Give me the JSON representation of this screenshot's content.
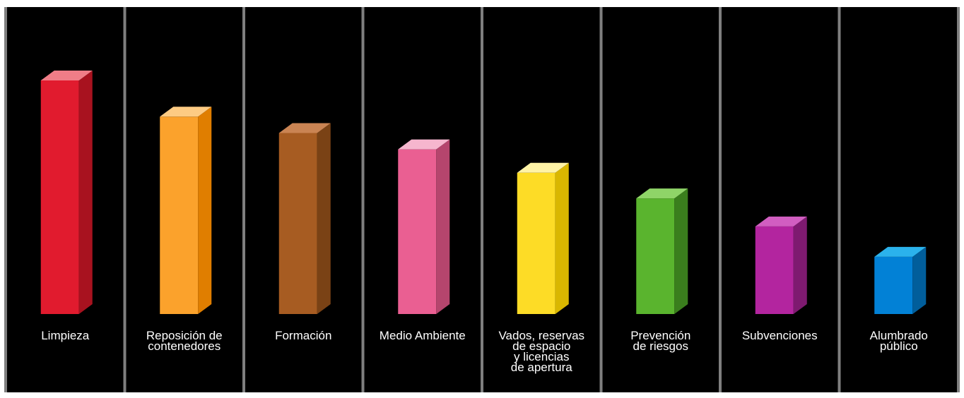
{
  "chart_data": {
    "type": "bar",
    "title": "",
    "xlabel": "",
    "ylabel": "",
    "grid": false,
    "legend": "none",
    "categories": [
      [
        "Limpieza"
      ],
      [
        "Reposición de",
        "contenedores"
      ],
      [
        "Formación"
      ],
      [
        "Medio Ambiente"
      ],
      [
        "Vados, reservas",
        "de espacio",
        "y licencias",
        "de apertura"
      ],
      [
        "Prevención",
        "de riesgos"
      ],
      [
        "Subvenciones"
      ],
      [
        "Alumbrado",
        "público"
      ]
    ],
    "values": [
      100,
      84.5,
      77.5,
      70.5,
      60.5,
      49.5,
      37.5,
      24.5
    ],
    "colors": [
      {
        "front": "#E11B2E",
        "side": "#A8121F",
        "top": "#F07D87"
      },
      {
        "front": "#FBA22C",
        "side": "#E07E00",
        "top": "#FDCB83"
      },
      {
        "front": "#A75C22",
        "side": "#7A4215",
        "top": "#CA8453"
      },
      {
        "front": "#EA5F92",
        "side": "#B5456D",
        "top": "#F6B6CE"
      },
      {
        "front": "#FDDC26",
        "side": "#D9B700",
        "top": "#FFF3A6"
      },
      {
        "front": "#5AB42E",
        "side": "#3A7E1D",
        "top": "#8FD468"
      },
      {
        "front": "#B3259F",
        "side": "#7E1A70",
        "top": "#D15EC1"
      },
      {
        "front": "#0281D6",
        "side": "#015E9B",
        "top": "#2BB2EC"
      }
    ],
    "background": "#000000",
    "divider_color": "#7F7F7F"
  }
}
